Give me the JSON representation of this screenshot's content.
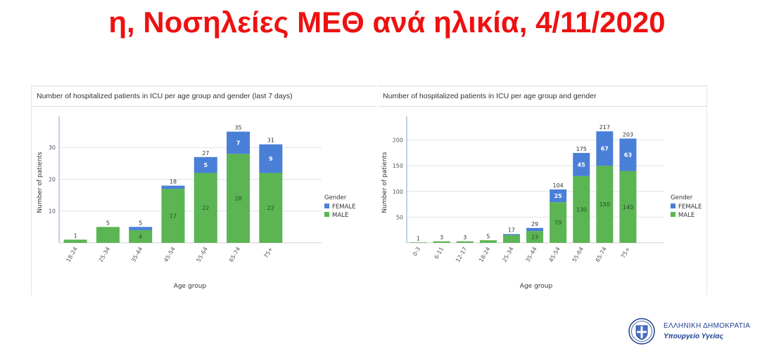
{
  "title": "η, Νοσηλείες ΜΕΘ ανά ηλικία, 4/11/2020",
  "colors": {
    "male": "#5ab552",
    "female": "#4a7fd8",
    "title": "#ee1111"
  },
  "logo": {
    "line1": "ΕΛΛΗΝΙΚΗ ΔΗΜΟΚΡΑΤΙΑ",
    "line2": "Υπουργείο Υγείας"
  },
  "chart_data": [
    {
      "type": "bar",
      "stacked": true,
      "title": "Number of hospitalized patients in ICU per age group and gender (last 7 days)",
      "xlabel": "Age group",
      "ylabel": "Number of patients",
      "legend_title": "Gender",
      "legend_position": "right",
      "grid": true,
      "ylim": [
        0,
        38
      ],
      "yticks": [
        10,
        20,
        30
      ],
      "categories": [
        "18-24",
        "25-34",
        "35-44",
        "45-54",
        "55-64",
        "65-74",
        "75+"
      ],
      "series": [
        {
          "name": "MALE",
          "values": [
            1,
            5,
            4,
            17,
            22,
            28,
            22
          ]
        },
        {
          "name": "FEMALE",
          "values": [
            0,
            0,
            1,
            1,
            5,
            7,
            9
          ]
        }
      ],
      "totals": [
        1,
        5,
        5,
        18,
        27,
        35,
        31
      ]
    },
    {
      "type": "bar",
      "stacked": true,
      "title": "Number of hospitalized patients in ICU per age group and gender",
      "xlabel": "Age group",
      "ylabel": "Number of patients",
      "legend_title": "Gender",
      "legend_position": "right",
      "grid": true,
      "ylim": [
        0,
        235
      ],
      "yticks": [
        50,
        100,
        150,
        200
      ],
      "categories": [
        "0-3",
        "6-11",
        "12-17",
        "18-24",
        "25-34",
        "35-44",
        "45-54",
        "55-64",
        "65-74",
        "75+"
      ],
      "series": [
        {
          "name": "MALE",
          "values": [
            1,
            3,
            3,
            5,
            15,
            23,
            79,
            130,
            150,
            140
          ]
        },
        {
          "name": "FEMALE",
          "values": [
            0,
            0,
            0,
            0,
            2,
            6,
            25,
            45,
            67,
            63
          ]
        }
      ],
      "totals": [
        1,
        3,
        3,
        5,
        17,
        29,
        104,
        175,
        217,
        203
      ]
    }
  ]
}
